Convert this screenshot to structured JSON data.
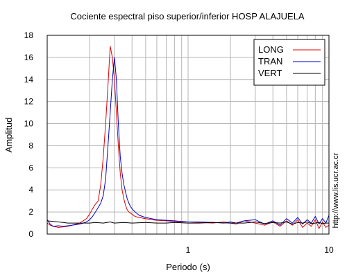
{
  "chart_data": {
    "type": "line",
    "title": "Cociente espectral piso superior/inferior  HOSP ALAJUELA",
    "xlabel": "Periodo (s)",
    "ylabel": "Amplitud",
    "xscale": "log",
    "xlim": [
      0.1,
      10
    ],
    "ylim": [
      0,
      18
    ],
    "x_ticks": [
      1,
      10
    ],
    "x_tick_labels": [
      "1",
      "10"
    ],
    "y_ticks": [
      0,
      2,
      4,
      6,
      8,
      10,
      12,
      14,
      16,
      18
    ],
    "y_tick_labels": [
      "0",
      "2",
      "4",
      "6",
      "8",
      "10",
      "12",
      "14",
      "16",
      "18"
    ],
    "grid": true,
    "legend_position": "top-right",
    "side_text": "http://www.lis.ucr.ac.cr",
    "series": [
      {
        "name": "LONG",
        "color": "#e00000",
        "x": [
          0.1,
          0.105,
          0.11,
          0.12,
          0.13,
          0.14,
          0.15,
          0.16,
          0.17,
          0.18,
          0.19,
          0.2,
          0.21,
          0.22,
          0.23,
          0.24,
          0.25,
          0.26,
          0.27,
          0.28,
          0.29,
          0.3,
          0.31,
          0.32,
          0.33,
          0.34,
          0.35,
          0.36,
          0.37,
          0.38,
          0.39,
          0.4,
          0.42,
          0.45,
          0.5,
          0.55,
          0.6,
          0.7,
          0.8,
          0.9,
          1.0,
          1.2,
          1.5,
          1.8,
          2.0,
          2.2,
          2.5,
          3.0,
          3.5,
          4.0,
          4.5,
          5.0,
          5.5,
          6.0,
          6.5,
          7.0,
          7.5,
          8.0,
          8.5,
          9.0,
          9.5,
          10.0
        ],
        "y": [
          1.0,
          0.8,
          0.7,
          0.6,
          0.65,
          0.7,
          0.8,
          0.9,
          1.0,
          1.2,
          1.4,
          1.8,
          2.3,
          2.7,
          3.0,
          4.5,
          7.0,
          10.0,
          13.5,
          17.0,
          16.0,
          14.0,
          11.0,
          8.0,
          5.5,
          4.0,
          3.2,
          2.6,
          2.2,
          2.0,
          1.9,
          1.8,
          1.6,
          1.5,
          1.4,
          1.3,
          1.25,
          1.2,
          1.15,
          1.1,
          1.1,
          1.05,
          1.0,
          1.1,
          1.0,
          0.9,
          1.2,
          1.0,
          0.8,
          1.1,
          0.7,
          1.2,
          0.8,
          1.3,
          0.6,
          1.0,
          0.7,
          1.3,
          0.5,
          1.1,
          0.6,
          0.8
        ]
      },
      {
        "name": "TRAN",
        "color": "#0000cc",
        "x": [
          0.1,
          0.105,
          0.11,
          0.12,
          0.13,
          0.14,
          0.15,
          0.16,
          0.17,
          0.18,
          0.19,
          0.2,
          0.21,
          0.22,
          0.23,
          0.24,
          0.25,
          0.26,
          0.27,
          0.28,
          0.29,
          0.3,
          0.31,
          0.32,
          0.33,
          0.34,
          0.35,
          0.36,
          0.37,
          0.38,
          0.39,
          0.4,
          0.42,
          0.45,
          0.5,
          0.55,
          0.6,
          0.7,
          0.8,
          0.9,
          1.0,
          1.2,
          1.5,
          1.8,
          2.0,
          2.2,
          2.5,
          3.0,
          3.5,
          4.0,
          4.5,
          5.0,
          5.5,
          6.0,
          6.5,
          7.0,
          7.5,
          8.0,
          8.5,
          9.0,
          9.5,
          10.0
        ],
        "y": [
          1.3,
          0.9,
          0.7,
          0.75,
          0.7,
          0.75,
          0.8,
          0.85,
          0.9,
          1.0,
          1.1,
          1.3,
          1.6,
          2.0,
          2.4,
          2.8,
          3.5,
          5.0,
          8.0,
          11.0,
          14.0,
          16.0,
          14.0,
          10.0,
          7.0,
          5.5,
          4.5,
          3.8,
          3.2,
          2.8,
          2.5,
          2.3,
          2.0,
          1.7,
          1.5,
          1.4,
          1.3,
          1.25,
          1.2,
          1.15,
          1.1,
          1.1,
          1.05,
          1.0,
          1.1,
          1.0,
          1.2,
          1.3,
          0.9,
          1.2,
          0.8,
          1.4,
          1.0,
          1.5,
          0.9,
          1.3,
          1.0,
          1.6,
          0.9,
          1.4,
          1.0,
          1.7
        ]
      },
      {
        "name": "VERT",
        "color": "#000000",
        "x": [
          0.1,
          0.11,
          0.12,
          0.13,
          0.14,
          0.15,
          0.17,
          0.2,
          0.22,
          0.25,
          0.28,
          0.3,
          0.35,
          0.4,
          0.5,
          0.6,
          0.7,
          0.8,
          1.0,
          1.2,
          1.5,
          2.0,
          2.5,
          3.0,
          3.5,
          4.0,
          4.5,
          5.0,
          5.5,
          6.0,
          6.5,
          7.0,
          7.5,
          8.0,
          8.5,
          9.0,
          9.5,
          10.0
        ],
        "y": [
          1.2,
          1.15,
          1.1,
          1.05,
          1.0,
          1.0,
          1.0,
          1.0,
          1.05,
          1.0,
          1.1,
          1.0,
          1.05,
          1.0,
          1.05,
          1.0,
          1.0,
          1.05,
          1.0,
          1.0,
          1.05,
          1.0,
          1.0,
          1.1,
          0.95,
          1.05,
          1.0,
          1.1,
          0.9,
          1.05,
          1.0,
          1.1,
          0.95,
          1.0,
          1.05,
          0.95,
          1.0,
          1.0
        ]
      }
    ]
  }
}
